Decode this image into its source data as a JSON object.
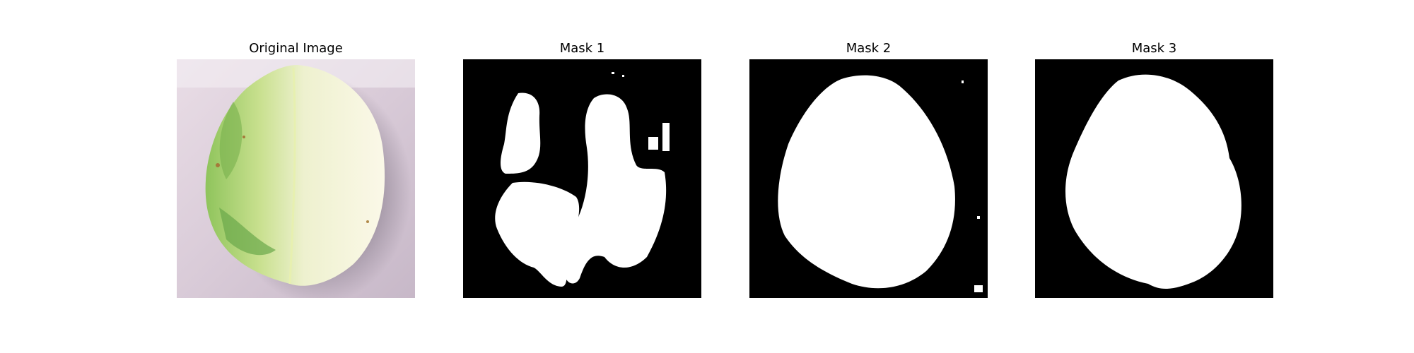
{
  "panels": [
    {
      "title": "Original Image",
      "kind": "leaf-photo"
    },
    {
      "title": "Mask 1",
      "kind": "segmentation-mask"
    },
    {
      "title": "Mask 2",
      "kind": "segmentation-mask"
    },
    {
      "title": "Mask 3",
      "kind": "segmentation-mask"
    }
  ],
  "colors": {
    "background": "#ffffff",
    "mask_foreground": "#ffffff",
    "mask_background": "#000000"
  }
}
